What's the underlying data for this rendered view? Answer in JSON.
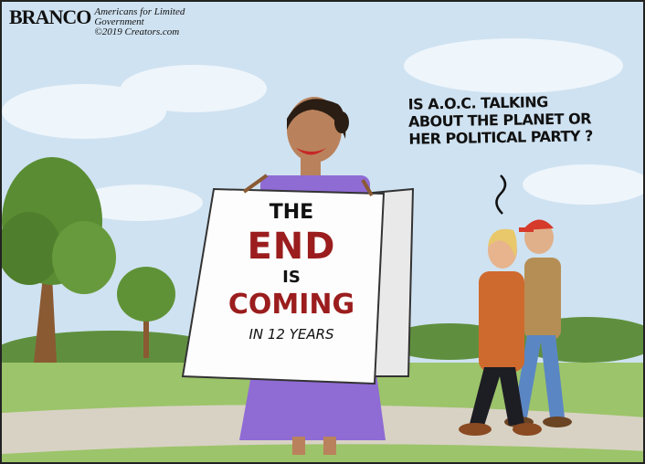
{
  "credit": {
    "artist": "BRANCO",
    "org_line1": "Americans for Limited",
    "org_line2": "Government",
    "copyright": "©2019 Creators.com"
  },
  "speech_bubble": {
    "line1": "IS A.O.C. TALKING",
    "line2": "ABOUT THE PLANET OR",
    "line3": "HER POLITICAL PARTY ?"
  },
  "sign": {
    "line1": "THE",
    "line2": "END",
    "line3": "IS",
    "line4": "COMING",
    "line5": "IN 12 YEARS"
  },
  "colors": {
    "sky": "#c8dff0",
    "grass": "#9cc46a",
    "path": "#d8d2c4",
    "dress": "#8f6bd4",
    "sign_text_red": "#9b1d1d",
    "cap_red": "#d63a2a",
    "jacket_orange": "#cf6a2e"
  }
}
